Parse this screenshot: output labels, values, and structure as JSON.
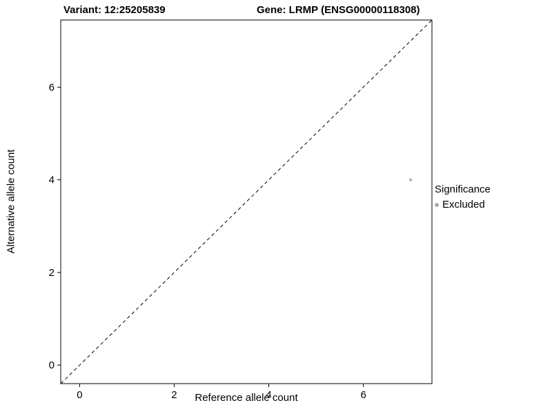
{
  "chart_data": {
    "type": "scatter",
    "title_variant": "Variant: 12:25205839",
    "title_gene": "Gene: LRMP (ENSG00000118308)",
    "xlabel": "Reference allele count",
    "ylabel": "Alternative allele count",
    "xlim": [
      -0.4,
      7.45
    ],
    "ylim": [
      -0.4,
      7.45
    ],
    "xticks": [
      0,
      2,
      4,
      6
    ],
    "yticks": [
      0,
      2,
      4,
      6
    ],
    "grid": false,
    "points": [
      {
        "x": 7,
        "y": 4,
        "series": "Excluded"
      }
    ],
    "reference_line": {
      "kind": "identity",
      "equation": "y = x",
      "style": "dashed"
    },
    "legend": {
      "title": "Significance",
      "position": "right",
      "entries": [
        {
          "label": "Excluded",
          "color": "#aaaaaa"
        }
      ]
    },
    "colors": {
      "point": "#b3b3b3",
      "axis": "#000000",
      "line": "#000000",
      "background": "#ffffff"
    }
  }
}
